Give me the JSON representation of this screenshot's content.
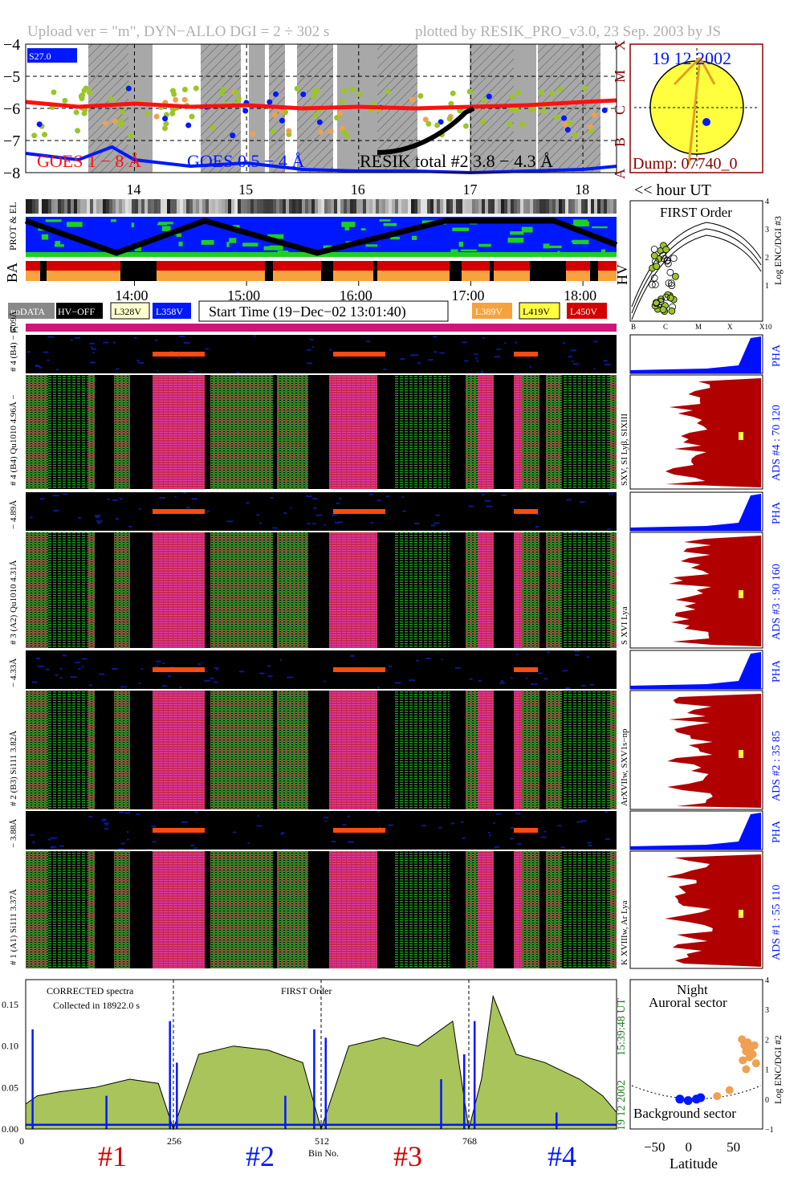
{
  "header": {
    "left": "Upload ver = \"m\", DYN−ALLO DGI =   2 ÷ 302 s",
    "right": "plotted by RESIK_PRO_v3.0, 23 Sep. 2003 by JS"
  },
  "colors": {
    "goes_long": "#ff1010",
    "goes_short": "#0018ff",
    "resik": "#000000",
    "green_pts": "#9bc42a",
    "orange_pts": "#f0a050",
    "shade": "#a8a8a8",
    "hv_red": "#d40000",
    "hv_orange": "#f7a23c",
    "ads_fill": "#b00000",
    "pha_fill": "#0010ff",
    "spectrum_fill": "#a8c45a",
    "tc": "#d0157a"
  },
  "goes_panel": {
    "y_ticks": [
      "−4",
      "−5",
      "−6",
      "−7",
      "−8"
    ],
    "class_labels": [
      "X",
      "M",
      "C",
      "B",
      "A"
    ],
    "s_label": "S27.0",
    "legend_goes_long": "GOES 1 − 8 Å",
    "legend_goes_short": "GOES 0.5 − 4 Å",
    "legend_resik": "RESIK total #2  3.8 − 4.3 Å",
    "hour_ticks": [
      "14",
      "15",
      "16",
      "17",
      "18"
    ],
    "hour_unit": "<< hour UT"
  },
  "sun_panel": {
    "date": "19 12 2002",
    "dump": "Dump: 07740_0"
  },
  "strip_labels": {
    "prot_el": "PROT & EL",
    "ba": "BA",
    "hv": "HV"
  },
  "time_axis": [
    "14:00",
    "15:00",
    "16:00",
    "17:00",
    "18:00"
  ],
  "legend_bar": {
    "nodata": "noDATA",
    "hvoff": "HV−OFF",
    "v1": "L328V",
    "v2": "L358V",
    "start_time": "Start Time (19−Dec−02 13:01:40)",
    "v3": "L389V",
    "v4": "L419V",
    "v5": "L450V"
  },
  "tc_label": "tc",
  "first_order": {
    "title": "FIRST Order",
    "ylabel": "Log ENC/DGI #3",
    "y_ticks": [
      "1",
      "2",
      "3",
      "4"
    ],
    "x_ticks": [
      "B",
      "C",
      "M",
      "X",
      "X10"
    ]
  },
  "channels": [
    {
      "pha_label": "# 4 (B4) − 6.09Å",
      "spec_label": "# 4 (B4) Qu1010 4.96Å −",
      "line_label": "SXV, SI Lyβ, SIXIII",
      "ads_label": "ADS #4 :   70 120"
    },
    {
      "pha_label": "− 4.89Å",
      "spec_label": "# 3 (A2) Qu1010 4.31Å",
      "line_label": "S XVI Lya",
      "ads_label": "ADS #3 :   90 160"
    },
    {
      "pha_label": "− 4.33Å",
      "spec_label": "# 2 (B3) Si111 3.82Å",
      "line_label": "ArXVIIw, SXV1s−np",
      "ads_label": "ADS #2 :   35 85"
    },
    {
      "pha_label": "− 3.88Å",
      "spec_label": "# 1 (A1) Si111 3.37Å",
      "line_label": "K XVIIIw, Ar Lya",
      "ads_label": "ADS #1 :   55 110"
    }
  ],
  "pha_word": "PHA",
  "bottom": {
    "note1": "CORRECTED spectra",
    "note2": "Collected in 18922.0 s",
    "center": "FIRST Order",
    "y_ticks": [
      "0.00",
      "0.05",
      "0.10",
      "0.15"
    ],
    "x_ticks": [
      "0",
      "256",
      "512",
      "768"
    ],
    "xlabel": "Bin No.",
    "side_time": "15:39:48 UT",
    "side_date": "19 12 2002",
    "ch_labels": [
      "#1",
      "#2",
      "#3",
      "#4"
    ]
  },
  "latitude": {
    "top1": "Night",
    "top2": "Auroral sector",
    "bottom_label": "Background sector",
    "xlabel": "Latitude",
    "x_ticks": [
      "−50",
      "0",
      "50"
    ],
    "ylabel": "Log ENC/DGI #2",
    "y_ticks": [
      "−1",
      "0",
      "1",
      "2",
      "3",
      "4"
    ]
  },
  "chart_data": [
    {
      "type": "line",
      "x_unit": "hour UT",
      "xlim": [
        13.03,
        18.3
      ],
      "ylim": [
        -8,
        -4
      ],
      "series": [
        {
          "name": "GOES 1 − 8 Å",
          "x": [
            13.03,
            13.5,
            14.0,
            14.5,
            15.0,
            15.5,
            16.0,
            16.5,
            17.0,
            17.5,
            18.0,
            18.3
          ],
          "y": [
            -5.8,
            -5.95,
            -5.85,
            -5.95,
            -5.9,
            -6.0,
            -5.95,
            -6.0,
            -5.95,
            -5.9,
            -5.8,
            -5.75
          ]
        },
        {
          "name": "GOES 0.5 − 4 Å",
          "x": [
            13.03,
            13.5,
            13.8,
            14.0,
            14.5,
            15.0,
            15.5,
            16.0,
            16.5,
            17.0,
            17.5,
            18.0,
            18.3
          ],
          "y": [
            -7.4,
            -7.6,
            -7.2,
            -7.6,
            -7.8,
            -7.7,
            -7.9,
            -7.95,
            -7.95,
            -8.0,
            -7.95,
            -7.9,
            -7.8
          ]
        }
      ]
    },
    {
      "type": "area",
      "xlabel": "Bin No.",
      "xlim": [
        0,
        1024
      ],
      "ylim": [
        0,
        0.18
      ],
      "series": [
        {
          "name": "total",
          "x": [
            0,
            20,
            60,
            120,
            180,
            230,
            256,
            300,
            360,
            420,
            480,
            512,
            560,
            620,
            680,
            740,
            768,
            790,
            810,
            850,
            900,
            960,
            1000,
            1024
          ],
          "y": [
            0.03,
            0.04,
            0.045,
            0.05,
            0.06,
            0.055,
            0.0,
            0.09,
            0.1,
            0.095,
            0.08,
            0.0,
            0.1,
            0.11,
            0.1,
            0.13,
            0.0,
            0.06,
            0.16,
            0.09,
            0.08,
            0.06,
            0.04,
            0.02
          ]
        },
        {
          "name": "background",
          "x": [
            0,
            256,
            512,
            768,
            1024
          ],
          "y": [
            0.005,
            0.005,
            0.005,
            0.005,
            0.005
          ]
        }
      ]
    },
    {
      "type": "scatter",
      "xlabel": "Latitude",
      "ylabel": "Log ENC/DGI #2",
      "xlim": [
        -80,
        80
      ],
      "ylim": [
        -1,
        4
      ],
      "series": [
        {
          "name": "orange",
          "x": [
            55,
            58,
            60,
            62,
            65,
            68,
            70,
            72,
            56,
            60,
            64,
            40,
            25
          ],
          "y": [
            2.0,
            1.8,
            1.6,
            1.9,
            1.7,
            1.5,
            1.8,
            1.2,
            1.3,
            1.0,
            1.4,
            0.3,
            0.1
          ]
        },
        {
          "name": "blue",
          "x": [
            -20,
            -10,
            0,
            5
          ],
          "y": [
            0.0,
            -0.05,
            0.0,
            0.05
          ]
        }
      ]
    }
  ]
}
